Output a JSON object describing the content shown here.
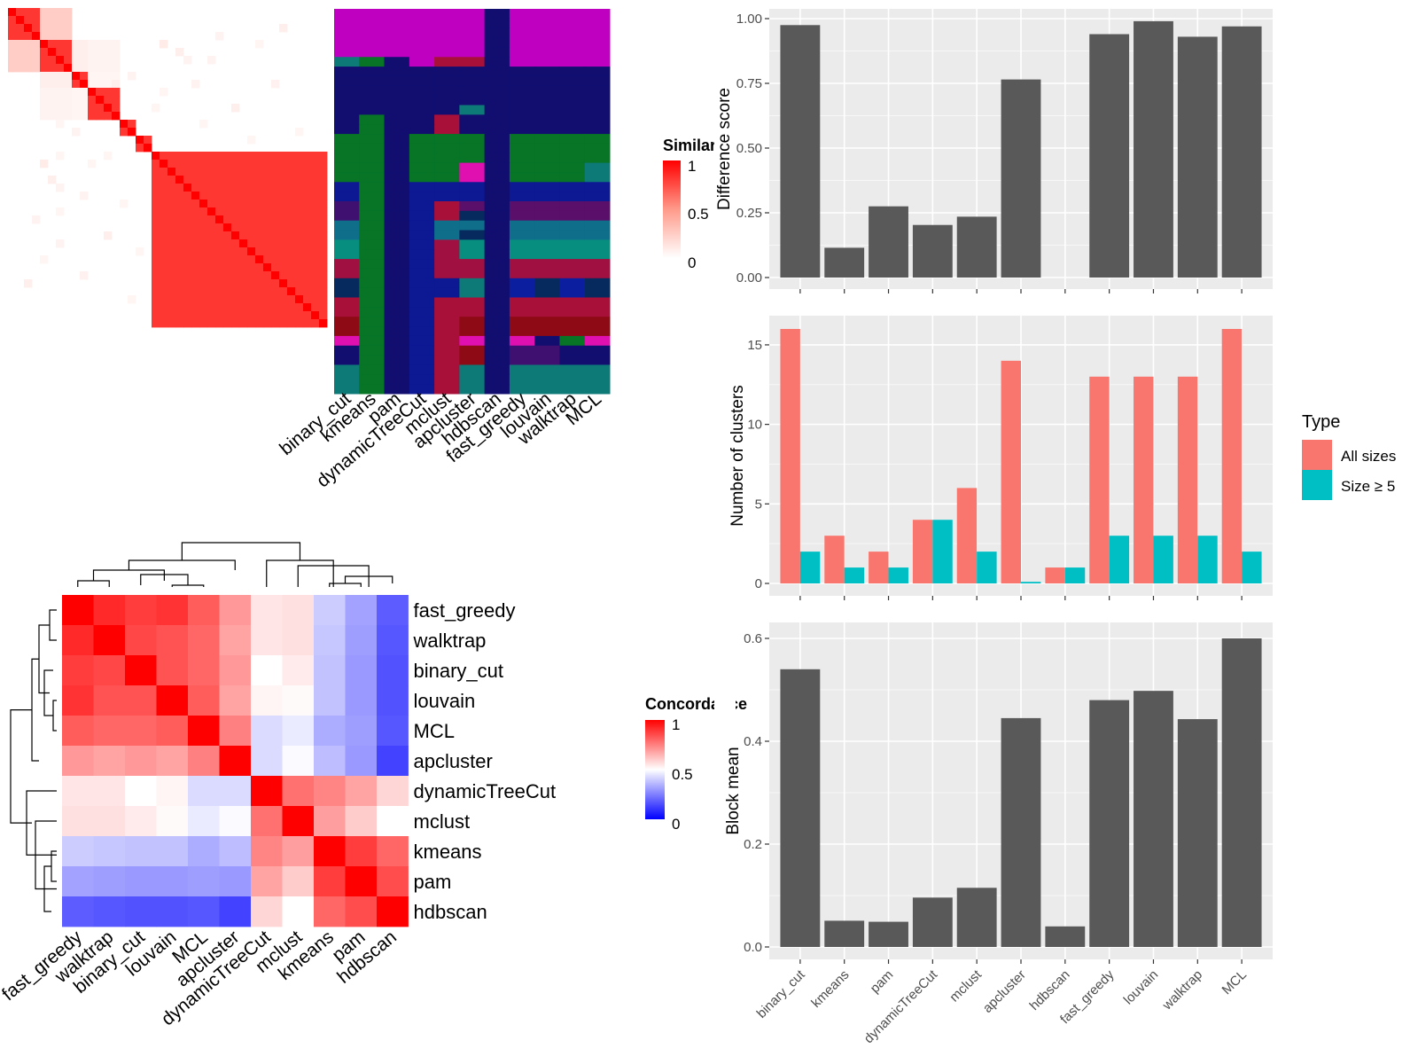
{
  "chart_data": [
    {
      "type": "heatmap",
      "panel": "similarity-heatmap",
      "legend_title": "Similarity",
      "legend_ticks": [
        "1",
        "0.5",
        "0"
      ],
      "n_cells": 40,
      "diag_blocks": [
        [
          0,
          4
        ],
        [
          4,
          8
        ],
        [
          8,
          10
        ],
        [
          10,
          14
        ],
        [
          14,
          16
        ],
        [
          16,
          18
        ],
        [
          18,
          40
        ]
      ],
      "block_pairs": [
        [
          0,
          1,
          0.25
        ],
        [
          1,
          2,
          0.08
        ],
        [
          2,
          3,
          0.05
        ],
        [
          1,
          3,
          0.06
        ]
      ],
      "scatter": [
        [
          13,
          6,
          0.06
        ],
        [
          14,
          6,
          0.05
        ],
        [
          18,
          6,
          0.05
        ],
        [
          19,
          4,
          0.1
        ],
        [
          21,
          5,
          0.08
        ],
        [
          22,
          6,
          0.06
        ],
        [
          25,
          6,
          0.05
        ],
        [
          29,
          6,
          0.06
        ],
        [
          6,
          13,
          0.06
        ],
        [
          4,
          19,
          0.1
        ],
        [
          5,
          21,
          0.08
        ],
        [
          6,
          22,
          0.06
        ],
        [
          6,
          25,
          0.06
        ],
        [
          9,
          13,
          0.08
        ],
        [
          11,
          12,
          0.1
        ],
        [
          18,
          12,
          0.05
        ],
        [
          12,
          18,
          0.05
        ],
        [
          19,
          10,
          0.05
        ],
        [
          10,
          19,
          0.05
        ],
        [
          23,
          9,
          0.06
        ],
        [
          9,
          23,
          0.06
        ],
        [
          26,
          3,
          0.06
        ],
        [
          3,
          26,
          0.06
        ],
        [
          28,
          12,
          0.08
        ],
        [
          12,
          28,
          0.08
        ],
        [
          31,
          4,
          0.05
        ],
        [
          4,
          31,
          0.05
        ],
        [
          33,
          9,
          0.07
        ],
        [
          9,
          33,
          0.07
        ],
        [
          36,
          15,
          0.05
        ],
        [
          15,
          36,
          0.05
        ],
        [
          15,
          8,
          0.06
        ],
        [
          8,
          15,
          0.06
        ],
        [
          30,
          16,
          0.05
        ],
        [
          16,
          30,
          0.05
        ],
        [
          2,
          34,
          0.08
        ],
        [
          34,
          2,
          0.08
        ],
        [
          24,
          14,
          0.05
        ],
        [
          14,
          24,
          0.05
        ]
      ]
    },
    {
      "type": "heatmap",
      "panel": "cluster-assignment",
      "columns": [
        "binary_cut",
        "kmeans",
        "pam",
        "dynamicTreeCut",
        "mclust",
        "apcluster",
        "hdbscan",
        "fast_greedy",
        "louvain",
        "walktrap",
        "MCL"
      ],
      "n_rows": 40,
      "palette": {
        "M": "#c000c0",
        "N": "#110e70",
        "G": "#077426",
        "B": "#0d1893",
        "T": "#0e7a78",
        "S": "#0f6e8a",
        "Q": "#078e7e",
        "R": "#a01040",
        "C": "#a8103a",
        "D": "#8e0a14",
        "P": "#e010b0",
        "V": "#401070",
        "K": "#072a5e",
        "E": "#0c1ea0",
        "W": "#5a0f6b"
      },
      "rows": [
        "MMMMMMNMMMM",
        "MMMMMMNMMMM",
        "MMMMMMNMMMM",
        "MMMMMMNMMMM",
        "MMMMMMNMMMM",
        "TGNMCCNMMMM",
        "NNNNNNNNNNN",
        "NNNNNNNNNNN",
        "NNNNNNNNNNN",
        "NNNNNNNNNNN",
        "NNNNNTNNNNN",
        "NGNNCNNNNNN",
        "NGNNCNNNNNN",
        "GGNGGGNGGGG",
        "GGNGGGNGGGG",
        "GGNGGGNGGGG",
        "GGNGGPNGGGT",
        "GGNGGPNGGGT",
        "BGNBBBNBBBB",
        "BGNBBBNBBBB",
        "VGNBCWNWWWW",
        "VGNBCKNWWWW",
        "SGNBSSNSSSS",
        "SGNBSKNSSSS",
        "QGNBRQNQQQQ",
        "QGNBRQNQQQQ",
        "RGNBRRNRRRR",
        "RGNBRRNRRRR",
        "KGNBBTNEKEK",
        "KGNBBTNEKEK",
        "CGNBCCNCCCC",
        "CGNBCCNCCCC",
        "DGNBCDNDDDD",
        "DGNBCDNDDDD",
        "PGNBCPNPNGP",
        "NGNBCDNVVNN",
        "NGNBCDNVVNN",
        "TGNBCTNTTTT",
        "TGNBCTNTTTT",
        "TGNBCTNTTTT"
      ]
    },
    {
      "type": "heatmap",
      "panel": "concordance-heatmap",
      "legend_title": "Concordance",
      "legend_ticks": [
        "1",
        "0.5",
        "0"
      ],
      "rows": [
        "fast_greedy",
        "walktrap",
        "binary_cut",
        "louvain",
        "MCL",
        "apcluster",
        "dynamicTreeCut",
        "mclust",
        "kmeans",
        "pam",
        "hdbscan"
      ],
      "cols": [
        "fast_greedy",
        "walktrap",
        "binary_cut",
        "louvain",
        "MCL",
        "apcluster",
        "dynamicTreeCut",
        "mclust",
        "kmeans",
        "pam",
        "hdbscan"
      ],
      "values": [
        [
          1.0,
          0.92,
          0.88,
          0.9,
          0.82,
          0.7,
          0.55,
          0.56,
          0.4,
          0.32,
          0.18
        ],
        [
          0.92,
          1.0,
          0.86,
          0.84,
          0.8,
          0.68,
          0.55,
          0.56,
          0.39,
          0.31,
          0.17
        ],
        [
          0.88,
          0.86,
          1.0,
          0.84,
          0.8,
          0.7,
          0.5,
          0.54,
          0.38,
          0.3,
          0.16
        ],
        [
          0.9,
          0.84,
          0.84,
          1.0,
          0.82,
          0.68,
          0.52,
          0.51,
          0.38,
          0.3,
          0.16
        ],
        [
          0.82,
          0.8,
          0.8,
          0.82,
          1.0,
          0.75,
          0.43,
          0.46,
          0.34,
          0.31,
          0.17
        ],
        [
          0.7,
          0.68,
          0.7,
          0.68,
          0.75,
          1.0,
          0.43,
          0.49,
          0.37,
          0.3,
          0.13
        ],
        [
          0.55,
          0.55,
          0.5,
          0.52,
          0.43,
          0.43,
          1.0,
          0.78,
          0.74,
          0.68,
          0.58
        ],
        [
          0.56,
          0.56,
          0.54,
          0.51,
          0.46,
          0.49,
          0.78,
          1.0,
          0.69,
          0.6,
          0.5
        ],
        [
          0.4,
          0.39,
          0.38,
          0.38,
          0.34,
          0.37,
          0.74,
          0.69,
          1.0,
          0.88,
          0.8
        ],
        [
          0.32,
          0.31,
          0.3,
          0.3,
          0.31,
          0.3,
          0.68,
          0.6,
          0.88,
          1.0,
          0.85
        ],
        [
          0.18,
          0.17,
          0.16,
          0.16,
          0.17,
          0.13,
          0.58,
          0.5,
          0.8,
          0.85,
          1.0
        ]
      ]
    },
    {
      "type": "bar",
      "panel": "difference-score",
      "categories": [
        "binary_cut",
        "kmeans",
        "pam",
        "dynamicTreeCut",
        "mclust",
        "apcluster",
        "hdbscan",
        "fast_greedy",
        "louvain",
        "walktrap",
        "MCL"
      ],
      "values": [
        0.975,
        0.115,
        0.275,
        0.203,
        0.235,
        0.765,
        null,
        0.94,
        0.99,
        0.93,
        0.97
      ],
      "xlabel": "",
      "ylabel": "Difference score",
      "ylim": [
        0,
        1.0
      ],
      "yticks": [
        "0.00",
        "0.25",
        "0.50",
        "0.75",
        "1.00"
      ],
      "bar_color": "#595959",
      "grid": true
    },
    {
      "type": "bar",
      "panel": "number-of-clusters",
      "categories": [
        "binary_cut",
        "kmeans",
        "pam",
        "dynamicTreeCut",
        "mclust",
        "apcluster",
        "hdbscan",
        "fast_greedy",
        "louvain",
        "walktrap",
        "MCL"
      ],
      "series": [
        {
          "name": "All sizes",
          "color": "#F8766D",
          "values": [
            16,
            3,
            2,
            4,
            6,
            14,
            1,
            13,
            13,
            13,
            16
          ]
        },
        {
          "name": "Size ≥ 5",
          "color": "#00BFC4",
          "values": [
            2,
            1,
            1,
            4,
            2,
            0.1,
            1,
            3,
            3,
            3,
            2
          ]
        }
      ],
      "xlabel": "",
      "ylabel": "Number of clusters",
      "ylim": [
        0,
        16
      ],
      "yticks": [
        "0",
        "5",
        "10",
        "15"
      ],
      "legend_title": "Type",
      "legend_position": "right",
      "grid": true
    },
    {
      "type": "bar",
      "panel": "block-mean",
      "categories": [
        "binary_cut",
        "kmeans",
        "pam",
        "dynamicTreeCut",
        "mclust",
        "apcluster",
        "hdbscan",
        "fast_greedy",
        "louvain",
        "walktrap",
        "MCL"
      ],
      "values": [
        0.54,
        0.051,
        0.049,
        0.096,
        0.115,
        0.445,
        0.04,
        0.48,
        0.498,
        0.443,
        0.6
      ],
      "xlabel": "",
      "ylabel": "Block mean",
      "ylim": [
        0,
        0.6
      ],
      "yticks": [
        "0.0",
        "0.2",
        "0.4",
        "0.6"
      ],
      "bar_color": "#595959",
      "grid": true
    }
  ]
}
